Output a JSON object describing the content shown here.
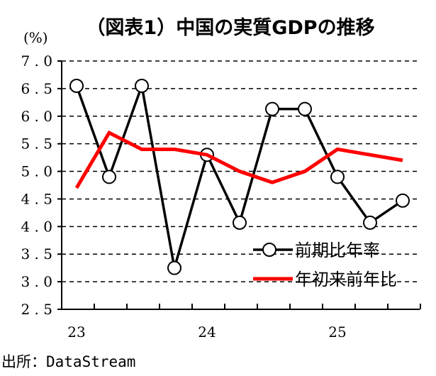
{
  "chart_data": {
    "type": "line",
    "title": "（図表1）中国の実質GDPの推移",
    "ylabel": "(%)",
    "ylim": [
      2.5,
      7.0
    ],
    "yticks": [
      "7.0",
      "6.5",
      "6.0",
      "5.5",
      "5.0",
      "4.5",
      "4.0",
      "3.5",
      "3.0",
      "2.5"
    ],
    "ytick_values": [
      7.0,
      6.5,
      6.0,
      5.5,
      5.0,
      4.5,
      4.0,
      3.5,
      3.0,
      2.5
    ],
    "xtick_labels": [
      {
        "label": "23",
        "index": 0
      },
      {
        "label": "24",
        "index": 4
      },
      {
        "label": "25",
        "index": 8
      }
    ],
    "x_count": 11,
    "grid": "horizontal dashed",
    "series": [
      {
        "name": "前期比年率",
        "color": "#000000",
        "marker": "circle",
        "values": [
          6.55,
          4.9,
          6.55,
          3.25,
          5.3,
          4.07,
          6.13,
          6.13,
          4.9,
          4.07,
          4.47
        ]
      },
      {
        "name": "年初来前年比",
        "color": "#ff0000",
        "marker": "none",
        "values": [
          4.7,
          5.7,
          5.4,
          5.4,
          5.3,
          5.0,
          4.8,
          5.0,
          5.4,
          5.3,
          5.2
        ]
      }
    ],
    "legend_position": "bottom-right"
  },
  "source": "出所：DataStream"
}
